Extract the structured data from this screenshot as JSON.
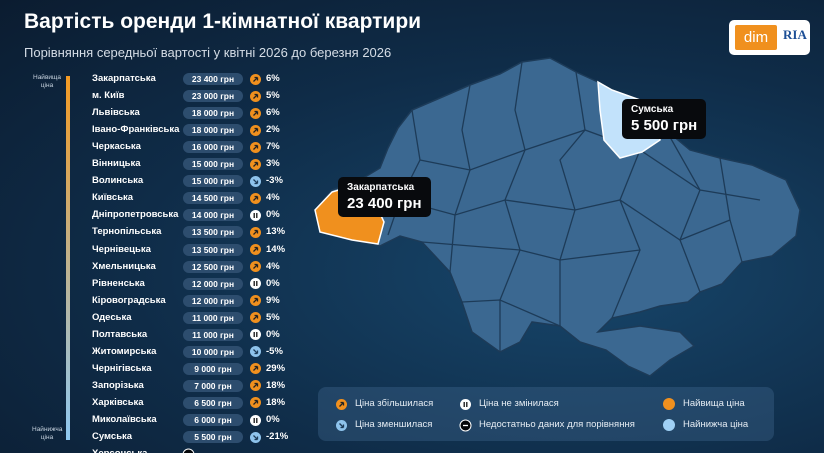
{
  "title": "Вартість оренди 1-кімнатної квартири",
  "subtitle": "Порівняння середньої вартості у квітні 2026 до березня 2026",
  "logo": {
    "left": "dim",
    "right": "RIA"
  },
  "scale": {
    "top": "Найвища ціна",
    "bottom": "Найнижча ціна"
  },
  "rows": [
    {
      "region": "Закарпатська",
      "price": "23 400 грн",
      "change": "6%",
      "trend": "up"
    },
    {
      "region": "м. Київ",
      "price": "23 000 грн",
      "change": "5%",
      "trend": "up"
    },
    {
      "region": "Львівська",
      "price": "18 000 грн",
      "change": "6%",
      "trend": "up"
    },
    {
      "region": "Івано-Франківська",
      "price": "18 000 грн",
      "change": "2%",
      "trend": "up"
    },
    {
      "region": "Черкаська",
      "price": "16 000 грн",
      "change": "7%",
      "trend": "up"
    },
    {
      "region": "Вінницька",
      "price": "15 000 грн",
      "change": "3%",
      "trend": "up"
    },
    {
      "region": "Волинська",
      "price": "15 000 грн",
      "change": "-3%",
      "trend": "down"
    },
    {
      "region": "Київська",
      "price": "14 500 грн",
      "change": "4%",
      "trend": "up"
    },
    {
      "region": "Дніпропетровська",
      "price": "14 000 грн",
      "change": "0%",
      "trend": "same"
    },
    {
      "region": "Тернопільська",
      "price": "13 500 грн",
      "change": "13%",
      "trend": "up"
    },
    {
      "region": "Чернівецька",
      "price": "13 500 грн",
      "change": "14%",
      "trend": "up"
    },
    {
      "region": "Хмельницька",
      "price": "12 500 грн",
      "change": "4%",
      "trend": "up"
    },
    {
      "region": "Рівненська",
      "price": "12 000 грн",
      "change": "0%",
      "trend": "same"
    },
    {
      "region": "Кіровоградська",
      "price": "12 000 грн",
      "change": "9%",
      "trend": "up"
    },
    {
      "region": "Одеська",
      "price": "11 000 грн",
      "change": "5%",
      "trend": "up"
    },
    {
      "region": "Полтавська",
      "price": "11 000 грн",
      "change": "0%",
      "trend": "same"
    },
    {
      "region": "Житомирська",
      "price": "10 000 грн",
      "change": "-5%",
      "trend": "down"
    },
    {
      "region": "Чернігівська",
      "price": "9 000 грн",
      "change": "29%",
      "trend": "up"
    },
    {
      "region": "Запорізька",
      "price": "7 000 грн",
      "change": "18%",
      "trend": "up"
    },
    {
      "region": "Харківська",
      "price": "6 500 грн",
      "change": "18%",
      "trend": "up"
    },
    {
      "region": "Миколаївська",
      "price": "6 000 грн",
      "change": "0%",
      "trend": "same"
    },
    {
      "region": "Сумська",
      "price": "5 500 грн",
      "change": "-21%",
      "trend": "down"
    },
    {
      "region": "Херсонська",
      "trend": "none"
    }
  ],
  "callouts": [
    {
      "region": "Сумська",
      "price": "5 500 грн"
    },
    {
      "region": "Закарпатська",
      "price": "23 400 грн"
    }
  ],
  "legend": [
    {
      "icon": "up",
      "text": "Ціна збільшилася"
    },
    {
      "icon": "same",
      "text": "Ціна не змінилася"
    },
    {
      "icon": "highest",
      "text": "Найвища ціна"
    },
    {
      "icon": "down",
      "text": "Ціна зменшилася"
    },
    {
      "icon": "none",
      "text": "Недостатньо даних для порівняння"
    },
    {
      "icon": "lowest",
      "text": "Найнижча ціна"
    }
  ]
}
